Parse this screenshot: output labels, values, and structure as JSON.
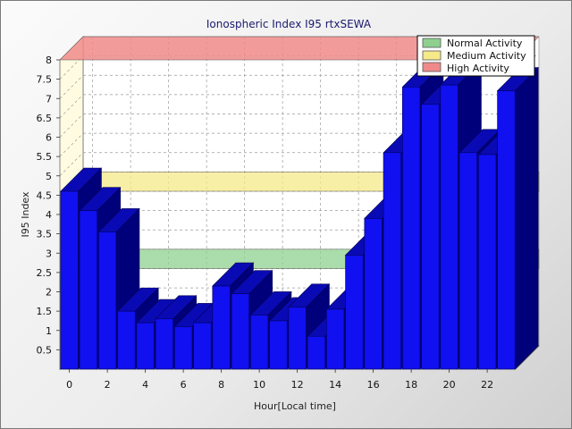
{
  "chart_data": {
    "type": "bar",
    "title": "Ionospheric Index I95 rtxSEWA",
    "xlabel": "Hour[Local time]",
    "ylabel": "I95 Index",
    "x": [
      0,
      1,
      2,
      3,
      4,
      5,
      6,
      7,
      8,
      9,
      10,
      11,
      12,
      13,
      14,
      15,
      16,
      17,
      18,
      19,
      20,
      21,
      22,
      23
    ],
    "values": [
      4.6,
      4.1,
      3.55,
      1.5,
      1.2,
      1.3,
      1.1,
      1.2,
      2.15,
      1.95,
      1.4,
      1.25,
      1.6,
      0.85,
      1.55,
      2.95,
      3.9,
      5.6,
      7.3,
      6.85,
      7.35,
      5.6,
      5.55,
      7.2
    ],
    "ylim": [
      0,
      8
    ],
    "y_ticks": [
      0.5,
      1,
      1.5,
      2,
      2.5,
      3,
      3.5,
      4,
      4.5,
      5,
      5.5,
      6,
      6.5,
      7,
      7.5,
      8
    ],
    "y_tick_labels": [
      "0.5",
      "1",
      "1.5",
      "2",
      "2.5",
      "3",
      "3.5",
      "4",
      "4.5",
      "5",
      "5.5",
      "6",
      "6.5",
      "7",
      "7.5",
      "8"
    ],
    "x_ticks": [
      0,
      2,
      4,
      6,
      8,
      10,
      12,
      14,
      16,
      18,
      20,
      22
    ],
    "x_tick_labels": [
      "0",
      "2",
      "4",
      "6",
      "8",
      "10",
      "12",
      "14",
      "16",
      "18",
      "20",
      "22"
    ],
    "bands": [
      {
        "name": "Normal Activity",
        "from": 2,
        "to": 2.5,
        "color": "#8fd08f"
      },
      {
        "name": "Medium Activity",
        "from": 4,
        "to": 4.5,
        "color": "#f5e98a"
      },
      {
        "name": "High Activity",
        "from": 8,
        "to": 8,
        "color": "#f08a8a"
      }
    ],
    "bar_color": "#1010f0",
    "bar_top_color": "#0a0ab4",
    "bar_side_color": "#00007a",
    "grid": true,
    "legend_position": "top-right"
  }
}
